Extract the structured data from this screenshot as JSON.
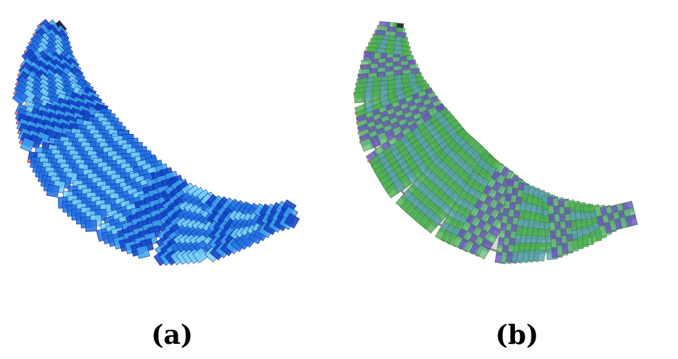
{
  "figure": {
    "panels": [
      {
        "label": "(a)",
        "tile_colors": [
          "#1e6fe0",
          "#3fa4f0",
          "#76d0fa",
          "#0f3fc4"
        ],
        "marker_color": "#f07a7a"
      },
      {
        "label": "(b)",
        "tile_colors": [
          "#4caf50",
          "#66c17a",
          "#5aa0b0",
          "#6a4fc0"
        ],
        "marker_color": "#f07a7a",
        "body_color": "#d9d9d9"
      }
    ]
  }
}
